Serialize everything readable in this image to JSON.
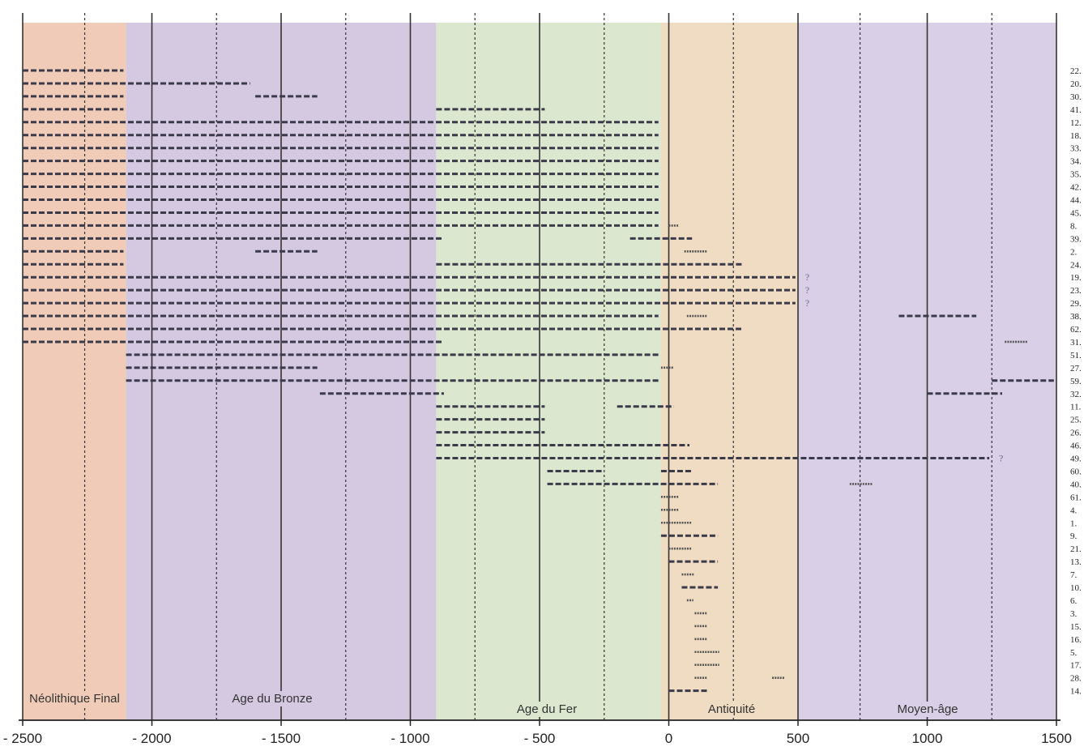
{
  "chart_data": {
    "type": "timeline",
    "x_range": [
      -2500,
      1500
    ],
    "x_ticks": [
      {
        "value": -2500,
        "label": "- 2500"
      },
      {
        "value": -2000,
        "label": "- 2000"
      },
      {
        "value": -1500,
        "label": "- 1500"
      },
      {
        "value": -1000,
        "label": "- 1000"
      },
      {
        "value": -500,
        "label": "- 500"
      },
      {
        "value": 0,
        "label": "0"
      },
      {
        "value": 500,
        "label": "500"
      },
      {
        "value": 1000,
        "label": "1000"
      },
      {
        "value": 1500,
        "label": "1500"
      }
    ],
    "major_gridlines": [
      -2500,
      -2000,
      -1500,
      -1000,
      -500,
      0,
      500,
      1000,
      1500
    ],
    "minor_gridlines": [
      -2260,
      -1750,
      -1250,
      -750,
      -250,
      250,
      740,
      1250
    ],
    "periods": [
      {
        "name": "Néolithique Final",
        "start": -2500,
        "end": -2100,
        "color": "#f0ccb8"
      },
      {
        "name": "Age du Bronze",
        "start": -2100,
        "end": -900,
        "color": "#d5c9e2"
      },
      {
        "name": "Age du Fer",
        "start": -900,
        "end": -30,
        "color": "#dbe8cf"
      },
      {
        "name": "Antiquité",
        "start": -30,
        "end": 500,
        "color": "#f0dcc2"
      },
      {
        "name": "Moyen-âge",
        "start": 500,
        "end": 1500,
        "color": "#d9d0e7"
      }
    ],
    "rows": [
      {
        "label": "22.",
        "segments": [
          [
            -2500,
            -2110,
            "dash"
          ]
        ]
      },
      {
        "label": "20.",
        "segments": [
          [
            -2500,
            -1620,
            "dash"
          ]
        ]
      },
      {
        "label": "30.",
        "segments": [
          [
            -2500,
            -2110,
            "dash"
          ],
          [
            -1600,
            -1360,
            "dash"
          ]
        ]
      },
      {
        "label": "41.",
        "segments": [
          [
            -2500,
            -2110,
            "dash"
          ],
          [
            -900,
            -480,
            "dash"
          ]
        ]
      },
      {
        "label": "12.",
        "segments": [
          [
            -2500,
            -40,
            "dash"
          ]
        ]
      },
      {
        "label": "18.",
        "segments": [
          [
            -2500,
            -40,
            "dash"
          ]
        ]
      },
      {
        "label": "33.",
        "segments": [
          [
            -2500,
            -40,
            "dash"
          ]
        ]
      },
      {
        "label": "34.",
        "segments": [
          [
            -2500,
            -40,
            "dash"
          ]
        ]
      },
      {
        "label": "35.",
        "segments": [
          [
            -2500,
            -40,
            "dash"
          ]
        ]
      },
      {
        "label": "42.",
        "segments": [
          [
            -2500,
            -40,
            "dash"
          ]
        ]
      },
      {
        "label": "44.",
        "segments": [
          [
            -2500,
            -40,
            "dash"
          ]
        ]
      },
      {
        "label": "45.",
        "segments": [
          [
            -2500,
            -40,
            "dash"
          ]
        ]
      },
      {
        "label": "8.",
        "segments": [
          [
            -2500,
            -40,
            "dash"
          ],
          [
            0,
            40,
            "dot"
          ]
        ]
      },
      {
        "label": "39.",
        "segments": [
          [
            -2500,
            -870,
            "dash"
          ],
          [
            -150,
            90,
            "dash"
          ]
        ]
      },
      {
        "label": "2.",
        "segments": [
          [
            -2500,
            -2110,
            "dash"
          ],
          [
            -1600,
            -1360,
            "dash"
          ],
          [
            60,
            150,
            "dot"
          ]
        ]
      },
      {
        "label": "24.",
        "segments": [
          [
            -2500,
            -2110,
            "dash"
          ],
          [
            -900,
            290,
            "dash"
          ]
        ]
      },
      {
        "label": "19.",
        "segments": [
          [
            -2500,
            490,
            "dash"
          ]
        ],
        "note": "?"
      },
      {
        "label": "23.",
        "segments": [
          [
            -2500,
            490,
            "dash"
          ]
        ],
        "note": "?"
      },
      {
        "label": "29.",
        "segments": [
          [
            -2500,
            490,
            "dash"
          ]
        ],
        "note": "?"
      },
      {
        "label": "38.",
        "segments": [
          [
            -2500,
            -40,
            "dash"
          ],
          [
            70,
            150,
            "dot"
          ],
          [
            890,
            1190,
            "dash"
          ]
        ]
      },
      {
        "label": "62.",
        "segments": [
          [
            -2500,
            290,
            "dash"
          ]
        ]
      },
      {
        "label": "31.",
        "segments": [
          [
            -2500,
            -870,
            "dash"
          ],
          [
            1300,
            1390,
            "dot"
          ]
        ]
      },
      {
        "label": "51.",
        "segments": [
          [
            -2100,
            -40,
            "dash"
          ]
        ]
      },
      {
        "label": "27.",
        "segments": [
          [
            -2100,
            -1360,
            "dash"
          ],
          [
            -30,
            20,
            "dot"
          ]
        ]
      },
      {
        "label": "59.",
        "segments": [
          [
            -2100,
            -40,
            "dash"
          ],
          [
            1250,
            1490,
            "dash"
          ]
        ]
      },
      {
        "label": "32.",
        "segments": [
          [
            -1350,
            -870,
            "dash"
          ],
          [
            1000,
            1290,
            "dash"
          ]
        ]
      },
      {
        "label": "11.",
        "segments": [
          [
            -900,
            -480,
            "dash"
          ],
          [
            -200,
            20,
            "dash"
          ]
        ]
      },
      {
        "label": "25.",
        "segments": [
          [
            -900,
            -480,
            "dash"
          ]
        ]
      },
      {
        "label": "26.",
        "segments": [
          [
            -900,
            -480,
            "dash"
          ]
        ]
      },
      {
        "label": "46.",
        "segments": [
          [
            -900,
            80,
            "dash"
          ]
        ]
      },
      {
        "label": "49.",
        "segments": [
          [
            -900,
            1240,
            "dash"
          ]
        ],
        "note": "?"
      },
      {
        "label": "60.",
        "segments": [
          [
            -470,
            -250,
            "dash"
          ],
          [
            -30,
            90,
            "dash"
          ]
        ]
      },
      {
        "label": "40.",
        "segments": [
          [
            -470,
            190,
            "dash"
          ],
          [
            700,
            790,
            "dot"
          ]
        ]
      },
      {
        "label": "61.",
        "segments": [
          [
            -30,
            40,
            "dot"
          ]
        ]
      },
      {
        "label": "4.",
        "segments": [
          [
            -30,
            40,
            "dot"
          ]
        ]
      },
      {
        "label": "1.",
        "segments": [
          [
            -30,
            90,
            "dot"
          ]
        ]
      },
      {
        "label": "9.",
        "segments": [
          [
            -30,
            190,
            "dash"
          ]
        ]
      },
      {
        "label": "21.",
        "segments": [
          [
            0,
            90,
            "dot"
          ]
        ]
      },
      {
        "label": "13.",
        "segments": [
          [
            0,
            190,
            "dash"
          ]
        ]
      },
      {
        "label": "7.",
        "segments": [
          [
            50,
            100,
            "dot"
          ]
        ]
      },
      {
        "label": "10.",
        "segments": [
          [
            50,
            190,
            "dash"
          ]
        ]
      },
      {
        "label": "6.",
        "segments": [
          [
            70,
            95,
            "dot"
          ]
        ]
      },
      {
        "label": "3.",
        "segments": [
          [
            100,
            150,
            "dot"
          ]
        ]
      },
      {
        "label": "15.",
        "segments": [
          [
            100,
            150,
            "dot"
          ]
        ]
      },
      {
        "label": "16.",
        "segments": [
          [
            100,
            150,
            "dot"
          ]
        ]
      },
      {
        "label": "5.",
        "segments": [
          [
            100,
            195,
            "dot"
          ]
        ]
      },
      {
        "label": "17.",
        "segments": [
          [
            100,
            195,
            "dot"
          ]
        ]
      },
      {
        "label": "28.",
        "segments": [
          [
            100,
            150,
            "dot"
          ],
          [
            400,
            450,
            "dot"
          ]
        ]
      },
      {
        "label": "14.",
        "segments": [
          [
            0,
            150,
            "dash"
          ]
        ]
      }
    ]
  }
}
